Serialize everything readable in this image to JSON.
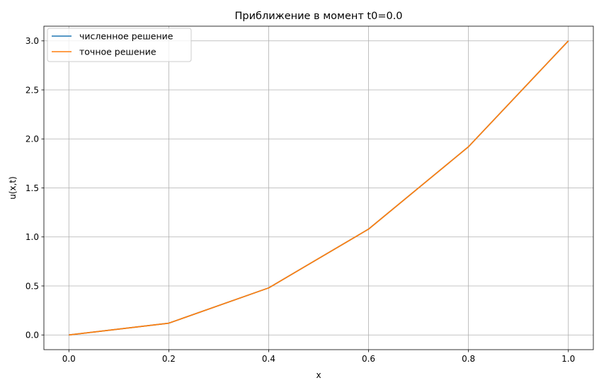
{
  "chart_data": {
    "type": "line",
    "title": "Приближение в момент t0=0.0",
    "xlabel": "x",
    "ylabel": "u(x,t)",
    "xlim": [
      -0.05,
      1.05
    ],
    "ylim": [
      -0.15,
      3.15
    ],
    "xticks": [
      0.0,
      0.2,
      0.4,
      0.6,
      0.8,
      1.0
    ],
    "yticks": [
      0.0,
      0.5,
      1.0,
      1.5,
      2.0,
      2.5,
      3.0
    ],
    "xtick_labels": [
      "0.0",
      "0.2",
      "0.4",
      "0.6",
      "0.8",
      "1.0"
    ],
    "ytick_labels": [
      "0.0",
      "0.5",
      "1.0",
      "1.5",
      "2.0",
      "2.5",
      "3.0"
    ],
    "grid": true,
    "legend_position": "top-left",
    "series": [
      {
        "name": "численное решение",
        "color": "#1f77b4",
        "x": [
          0.0,
          0.2,
          0.4,
          0.6,
          0.8,
          1.0
        ],
        "y": [
          0.0,
          0.12,
          0.48,
          1.08,
          1.92,
          3.0
        ]
      },
      {
        "name": "точное решение",
        "color": "#ff7f0e",
        "x": [
          0.0,
          0.2,
          0.4,
          0.6,
          0.8,
          1.0
        ],
        "y": [
          0.0,
          0.12,
          0.48,
          1.08,
          1.92,
          3.0
        ]
      }
    ]
  }
}
